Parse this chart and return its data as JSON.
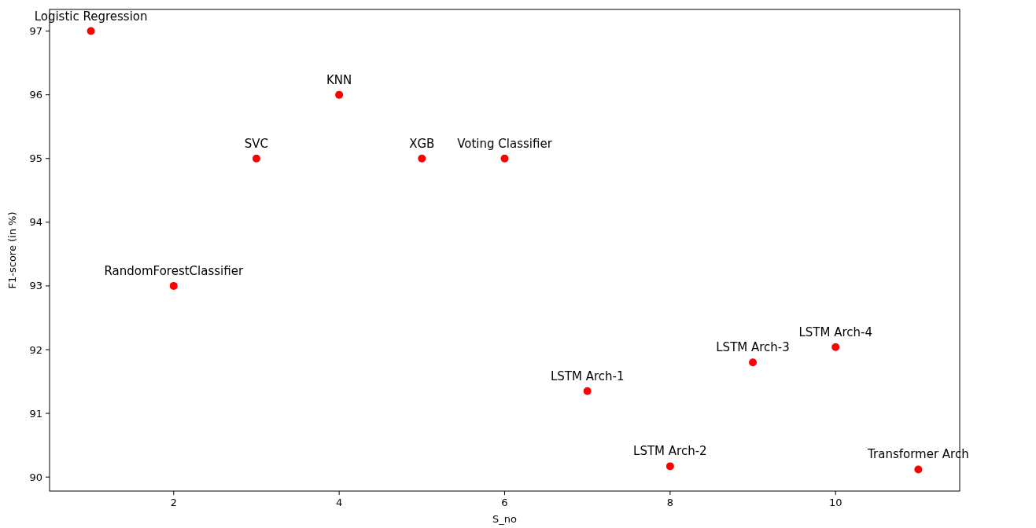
{
  "chart_data": {
    "type": "scatter",
    "xlabel": "S_no",
    "ylabel": "F1-score (in %)",
    "x": [
      1,
      2,
      3,
      4,
      5,
      6,
      7,
      8,
      9,
      10,
      11
    ],
    "series": [
      {
        "color": "#ff0000",
        "values": [
          97,
          93,
          95,
          96,
          95,
          95,
          91.35,
          90.17,
          91.8,
          92.04,
          90.12
        ]
      }
    ],
    "xlim": [
      0.5,
      11.5
    ],
    "xticks": [
      2,
      4,
      6,
      8,
      10
    ],
    "ylim": [
      89.78,
      97.34
    ],
    "yticks": [
      90,
      91,
      92,
      93,
      94,
      95,
      96,
      97
    ],
    "grid": false,
    "marker": "circle",
    "annotations": [
      {
        "text": "Logistic Regression",
        "x": 1,
        "y": 97
      },
      {
        "text": "RandomForestClassifier",
        "x": 2,
        "y": 93
      },
      {
        "text": "SVC",
        "x": 3,
        "y": 95
      },
      {
        "text": "KNN",
        "x": 4,
        "y": 96
      },
      {
        "text": "XGB",
        "x": 5,
        "y": 95
      },
      {
        "text": "Voting Classifier",
        "x": 6,
        "y": 95
      },
      {
        "text": "LSTM Arch-1",
        "x": 7,
        "y": 91.35
      },
      {
        "text": "LSTM Arch-2",
        "x": 8,
        "y": 90.17
      },
      {
        "text": "LSTM Arch-3",
        "x": 9,
        "y": 91.8
      },
      {
        "text": "LSTM Arch-4",
        "x": 10,
        "y": 92.04
      },
      {
        "text": "Transformer Arch",
        "x": 11,
        "y": 90.12
      }
    ]
  }
}
